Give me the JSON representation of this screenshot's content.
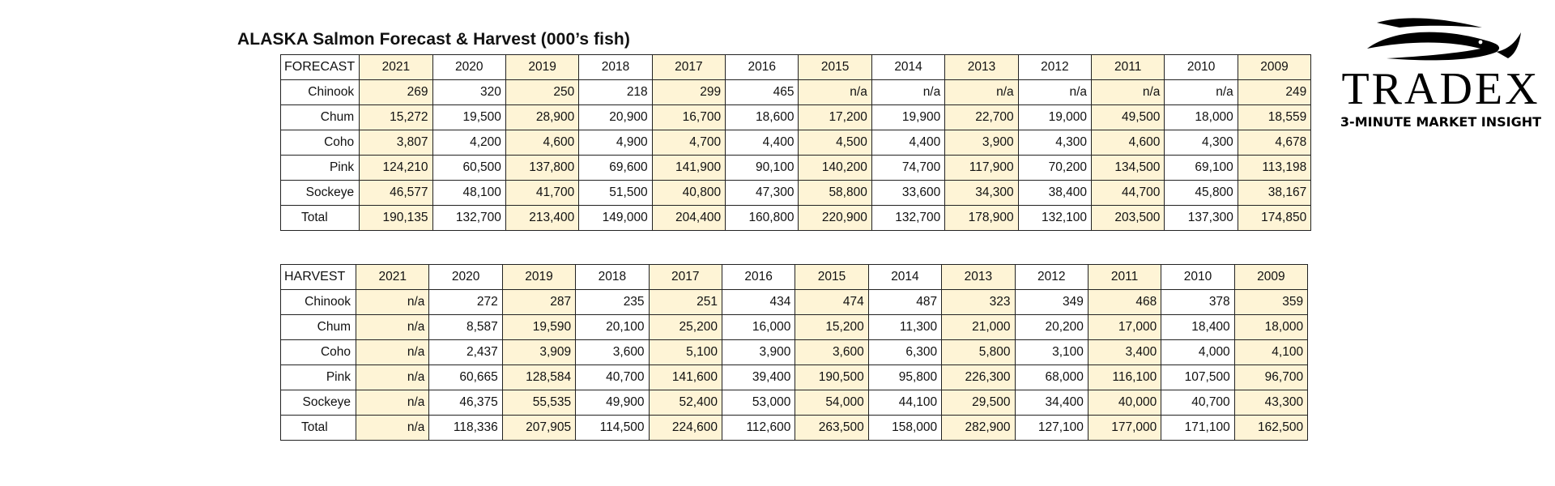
{
  "title": "ALASKA Salmon Forecast & Harvest (000’s fish)",
  "years": [
    "2021",
    "2020",
    "2019",
    "2018",
    "2017",
    "2016",
    "2015",
    "2014",
    "2013",
    "2012",
    "2011",
    "2010",
    "2009"
  ],
  "highlight_color": "#fef4d6",
  "forecast": {
    "header": "FORECAST",
    "rows": [
      {
        "label": "Chinook",
        "values": [
          "269",
          "320",
          "250",
          "218",
          "299",
          "465",
          "n/a",
          "n/a",
          "n/a",
          "n/a",
          "n/a",
          "n/a",
          "249"
        ]
      },
      {
        "label": "Chum",
        "values": [
          "15,272",
          "19,500",
          "28,900",
          "20,900",
          "16,700",
          "18,600",
          "17,200",
          "19,900",
          "22,700",
          "19,000",
          "49,500",
          "18,000",
          "18,559"
        ]
      },
      {
        "label": "Coho",
        "values": [
          "3,807",
          "4,200",
          "4,600",
          "4,900",
          "4,700",
          "4,400",
          "4,500",
          "4,400",
          "3,900",
          "4,300",
          "4,600",
          "4,300",
          "4,678"
        ]
      },
      {
        "label": "Pink",
        "values": [
          "124,210",
          "60,500",
          "137,800",
          "69,600",
          "141,900",
          "90,100",
          "140,200",
          "74,700",
          "117,900",
          "70,200",
          "134,500",
          "69,100",
          "113,198"
        ]
      },
      {
        "label": "Sockeye",
        "values": [
          "46,577",
          "48,100",
          "41,700",
          "51,500",
          "40,800",
          "47,300",
          "58,800",
          "33,600",
          "34,300",
          "38,400",
          "44,700",
          "45,800",
          "38,167"
        ]
      },
      {
        "label": "Total",
        "values": [
          "190,135",
          "132,700",
          "213,400",
          "149,000",
          "204,400",
          "160,800",
          "220,900",
          "132,700",
          "178,900",
          "132,100",
          "203,500",
          "137,300",
          "174,850"
        ]
      }
    ]
  },
  "harvest": {
    "header": "HARVEST",
    "rows": [
      {
        "label": "Chinook",
        "values": [
          "n/a",
          "272",
          "287",
          "235",
          "251",
          "434",
          "474",
          "487",
          "323",
          "349",
          "468",
          "378",
          "359"
        ]
      },
      {
        "label": "Chum",
        "values": [
          "n/a",
          "8,587",
          "19,590",
          "20,100",
          "25,200",
          "16,000",
          "15,200",
          "11,300",
          "21,000",
          "20,200",
          "17,000",
          "18,400",
          "18,000"
        ]
      },
      {
        "label": "Coho",
        "values": [
          "n/a",
          "2,437",
          "3,909",
          "3,600",
          "5,100",
          "3,900",
          "3,600",
          "6,300",
          "5,800",
          "3,100",
          "3,400",
          "4,000",
          "4,100"
        ]
      },
      {
        "label": "Pink",
        "values": [
          "n/a",
          "60,665",
          "128,584",
          "40,700",
          "141,600",
          "39,400",
          "190,500",
          "95,800",
          "226,300",
          "68,000",
          "116,100",
          "107,500",
          "96,700"
        ]
      },
      {
        "label": "Sockeye",
        "values": [
          "n/a",
          "46,375",
          "55,535",
          "49,900",
          "52,400",
          "53,000",
          "54,000",
          "44,100",
          "29,500",
          "34,400",
          "40,000",
          "40,700",
          "43,300"
        ]
      },
      {
        "label": "Total",
        "values": [
          "n/a",
          "118,336",
          "207,905",
          "114,500",
          "224,600",
          "112,600",
          "263,500",
          "158,000",
          "282,900",
          "127,100",
          "177,000",
          "171,100",
          "162,500"
        ]
      }
    ]
  },
  "logo": {
    "brand": "TRADEX",
    "tagline": "3-MINUTE MARKET INSIGHT",
    "icon": "fish-wave-icon"
  }
}
